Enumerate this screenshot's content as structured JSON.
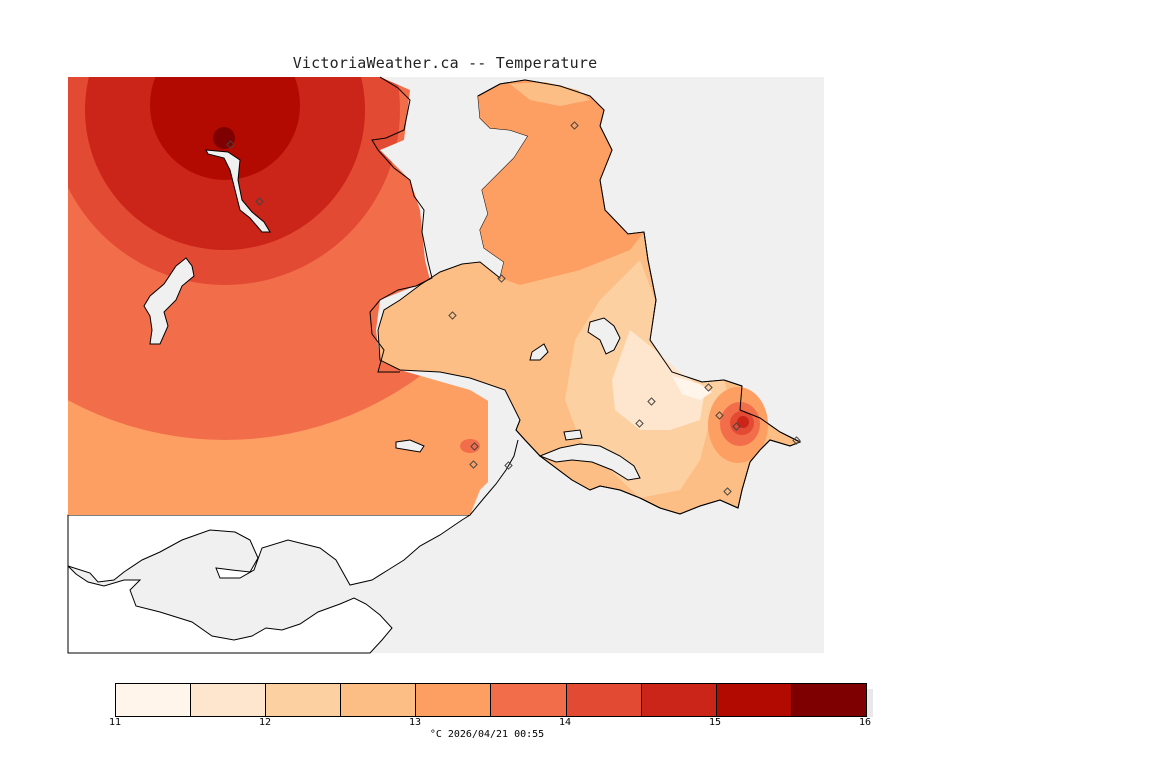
{
  "title": "VictoriaWeather.ca -- Temperature",
  "legend": {
    "colors": [
      "#fff5eb",
      "#fee6ce",
      "#fdd0a2",
      "#fdbe85",
      "#fd9f63",
      "#f26d4a",
      "#e34a33",
      "#cb2418",
      "#b20a00",
      "#7f0000"
    ],
    "ticks": [
      "11",
      "12",
      "13",
      "14",
      "15",
      "16"
    ],
    "unit": "°C",
    "timestamp": "2026/04/21 00:55"
  },
  "map": {
    "sea_color": "#f0f0f0",
    "land_fill": "#ffffff",
    "station_count": 13
  }
}
